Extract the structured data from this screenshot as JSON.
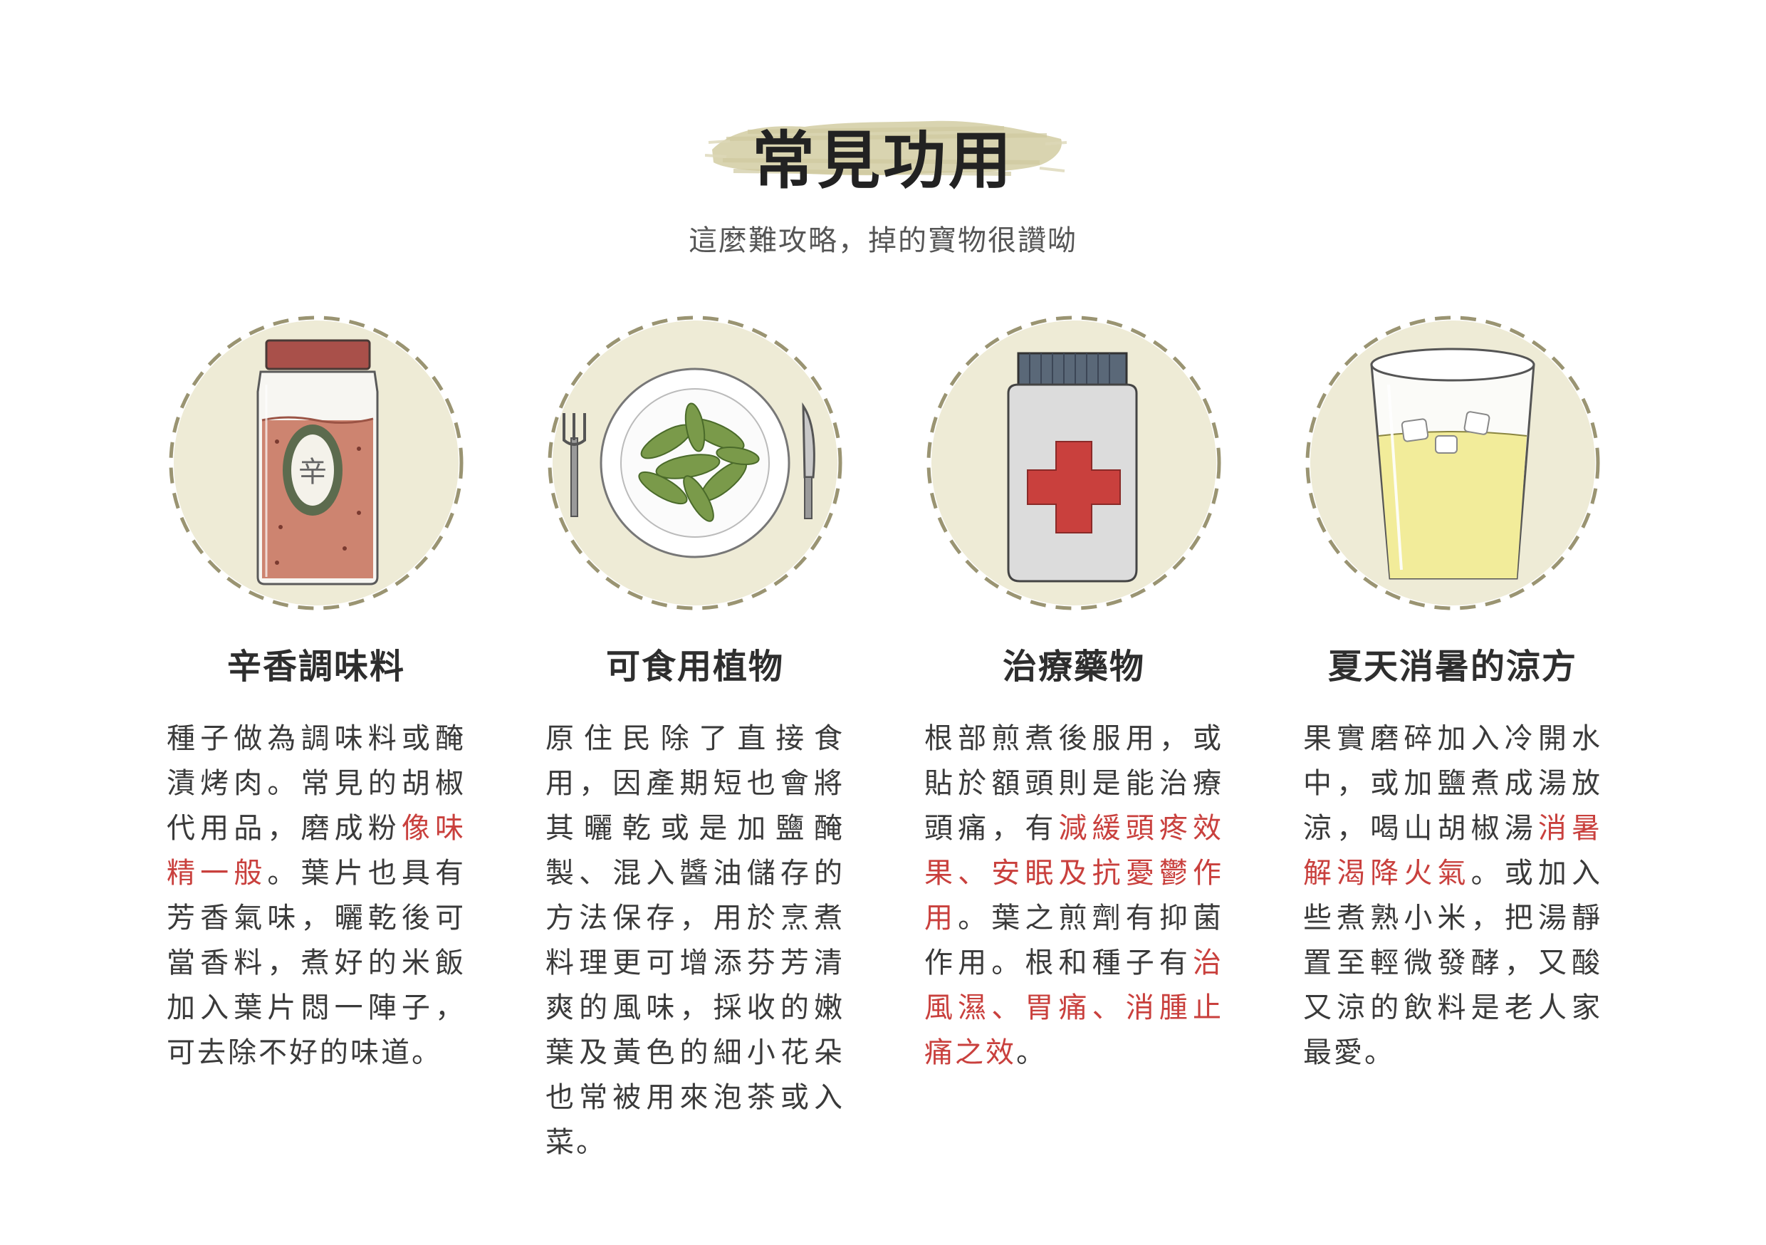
{
  "header": {
    "title": "常見功用",
    "subtitle": "這麼難攻略，掉的寶物很讚呦"
  },
  "colors": {
    "accent_red": "#c9403d",
    "circle_fill": "#eeebd6",
    "circle_stroke": "#9a9472",
    "brush": "#d9d4b0"
  },
  "cards": [
    {
      "icon": "spice-jar-icon",
      "jar_label": "辛",
      "title": "辛香調味料",
      "text": [
        {
          "t": "種子做為調味料或醃漬烤肉。常見的胡椒代用品，磨成粉",
          "hl": false
        },
        {
          "t": "像味精一般",
          "hl": true
        },
        {
          "t": "。葉片也具有芳香氣味，曬乾後可當香料，煮好的米飯加入葉片悶一陣子，可去除不好的味道。",
          "hl": false
        }
      ]
    },
    {
      "icon": "plate-of-leaves-icon",
      "title": "可食用植物",
      "text": [
        {
          "t": "原住民除了直接食用，因產期短也會將其曬乾或是加鹽醃製、混入醬油儲存的方法保存，用於烹煮料理更可增添芬芳清爽的風味，採收的嫩葉及黃色的細小花朵也常被用來泡茶或入菜。",
          "hl": false
        }
      ]
    },
    {
      "icon": "medicine-bottle-icon",
      "title": "治療藥物",
      "text": [
        {
          "t": "根部煎煮後服用，或貼於額頭則是能治療頭痛，有",
          "hl": false
        },
        {
          "t": "減緩頭疼效果、安眠及抗憂鬱作用",
          "hl": true
        },
        {
          "t": "。葉之煎劑有抑菌作用。根和種子有",
          "hl": false
        },
        {
          "t": "治風濕、胃痛、消腫止痛之效",
          "hl": true
        },
        {
          "t": "。",
          "hl": false
        }
      ]
    },
    {
      "icon": "iced-drink-icon",
      "title": "夏天消暑的涼方",
      "text": [
        {
          "t": "果實磨碎加入冷開水中，或加鹽煮成湯放涼，喝山胡椒湯",
          "hl": false
        },
        {
          "t": "消暑解渴降火氣",
          "hl": true
        },
        {
          "t": "。或加入些煮熟小米，把湯靜置至輕微發酵，又酸又涼的飲料是老人家最愛。",
          "hl": false
        }
      ]
    }
  ]
}
